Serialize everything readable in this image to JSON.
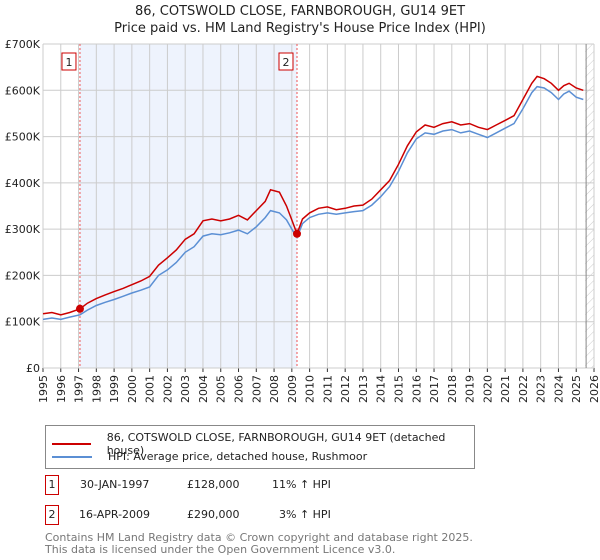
{
  "title_line1": "86, COTSWOLD CLOSE, FARNBOROUGH, GU14 9ET",
  "title_line2": "Price paid vs. HM Land Registry's House Price Index (HPI)",
  "chart_data": {
    "type": "line",
    "xlim": [
      1995,
      2026
    ],
    "ylim": [
      0,
      700000
    ],
    "y_ticks": [
      {
        "v": 0,
        "label": "£0"
      },
      {
        "v": 100000,
        "label": "£100K"
      },
      {
        "v": 200000,
        "label": "£200K"
      },
      {
        "v": 300000,
        "label": "£300K"
      },
      {
        "v": 400000,
        "label": "£400K"
      },
      {
        "v": 500000,
        "label": "£500K"
      },
      {
        "v": 600000,
        "label": "£600K"
      },
      {
        "v": 700000,
        "label": "£700K"
      }
    ],
    "x_ticks": [
      "1995",
      "1996",
      "1997",
      "1998",
      "1999",
      "2000",
      "2001",
      "2002",
      "2003",
      "2004",
      "2005",
      "2006",
      "2007",
      "2008",
      "2009",
      "2010",
      "2011",
      "2012",
      "2013",
      "2014",
      "2015",
      "2016",
      "2017",
      "2018",
      "2019",
      "2020",
      "2021",
      "2022",
      "2023",
      "2024",
      "2025",
      "2026"
    ],
    "grid": true,
    "shaded_span": [
      1997.08,
      2009.29
    ],
    "hatched_from": 2025.5,
    "series": [
      {
        "name": "86, COTSWOLD CLOSE, FARNBOROUGH, GU14 9ET (detached house)",
        "color": "#cc0000",
        "x": [
          1995,
          1995.5,
          1996,
          1996.5,
          1997.08,
          1997.5,
          1998,
          1998.5,
          1999,
          1999.5,
          2000,
          2000.5,
          2001,
          2001.5,
          2002,
          2002.5,
          2003,
          2003.5,
          2004,
          2004.5,
          2005,
          2005.5,
          2006,
          2006.5,
          2007,
          2007.5,
          2007.8,
          2008.3,
          2008.7,
          2009.0,
          2009.29,
          2009.6,
          2010,
          2010.5,
          2011,
          2011.5,
          2012,
          2012.5,
          2013,
          2013.5,
          2014,
          2014.5,
          2015,
          2015.5,
          2016,
          2016.5,
          2017,
          2017.5,
          2018,
          2018.5,
          2019,
          2019.5,
          2020,
          2020.5,
          2021,
          2021.5,
          2022,
          2022.5,
          2022.8,
          2023.2,
          2023.6,
          2024,
          2024.3,
          2024.6,
          2025,
          2025.4
        ],
        "y": [
          117000,
          120000,
          115000,
          120000,
          128000,
          140000,
          150000,
          158000,
          165000,
          172000,
          180000,
          188000,
          198000,
          222000,
          238000,
          255000,
          278000,
          290000,
          318000,
          322000,
          318000,
          322000,
          330000,
          320000,
          340000,
          360000,
          385000,
          380000,
          350000,
          320000,
          290000,
          322000,
          335000,
          345000,
          348000,
          342000,
          345000,
          350000,
          352000,
          365000,
          385000,
          405000,
          440000,
          480000,
          510000,
          525000,
          520000,
          528000,
          532000,
          525000,
          528000,
          520000,
          515000,
          525000,
          535000,
          545000,
          580000,
          615000,
          630000,
          625000,
          615000,
          600000,
          610000,
          615000,
          605000,
          600000
        ]
      },
      {
        "name": "HPI: Average price, detached house, Rushmoor",
        "color": "#5b8fd4",
        "x": [
          1995,
          1995.5,
          1996,
          1996.5,
          1997.08,
          1997.5,
          1998,
          1998.5,
          1999,
          1999.5,
          2000,
          2000.5,
          2001,
          2001.5,
          2002,
          2002.5,
          2003,
          2003.5,
          2004,
          2004.5,
          2005,
          2005.5,
          2006,
          2006.5,
          2007,
          2007.5,
          2007.8,
          2008.3,
          2008.7,
          2009.0,
          2009.29,
          2009.6,
          2010,
          2010.5,
          2011,
          2011.5,
          2012,
          2012.5,
          2013,
          2013.5,
          2014,
          2014.5,
          2015,
          2015.5,
          2016,
          2016.5,
          2017,
          2017.5,
          2018,
          2018.5,
          2019,
          2019.5,
          2020,
          2020.5,
          2021,
          2021.5,
          2022,
          2022.5,
          2022.8,
          2023.2,
          2023.6,
          2024,
          2024.3,
          2024.6,
          2025,
          2025.4
        ],
        "y": [
          105000,
          108000,
          105000,
          110000,
          115000,
          125000,
          135000,
          142000,
          148000,
          155000,
          162000,
          168000,
          175000,
          200000,
          212000,
          228000,
          250000,
          262000,
          285000,
          290000,
          288000,
          292000,
          298000,
          290000,
          305000,
          325000,
          340000,
          335000,
          320000,
          300000,
          282000,
          312000,
          325000,
          332000,
          335000,
          332000,
          335000,
          338000,
          340000,
          352000,
          370000,
          392000,
          425000,
          465000,
          495000,
          508000,
          505000,
          512000,
          515000,
          508000,
          512000,
          505000,
          498000,
          508000,
          518000,
          528000,
          560000,
          595000,
          608000,
          605000,
          595000,
          580000,
          592000,
          598000,
          585000,
          580000
        ]
      }
    ],
    "sales": [
      {
        "label": "1",
        "x": 1997.08,
        "y": 128000
      },
      {
        "label": "2",
        "x": 2009.29,
        "y": 290000
      }
    ]
  },
  "legend": {
    "red": "86, COTSWOLD CLOSE, FARNBOROUGH, GU14 9ET (detached house)",
    "blue": "HPI: Average price, detached house, Rushmoor"
  },
  "transactions": [
    {
      "num": "1",
      "date": "30-JAN-1997",
      "price": "£128,000",
      "hpi": "11% ↑ HPI"
    },
    {
      "num": "2",
      "date": "16-APR-2009",
      "price": "£290,000",
      "hpi": "3% ↑ HPI"
    }
  ],
  "footer": {
    "line1": "Contains HM Land Registry data © Crown copyright and database right 2025.",
    "line2": "This data is licensed under the Open Government Licence v3.0."
  }
}
